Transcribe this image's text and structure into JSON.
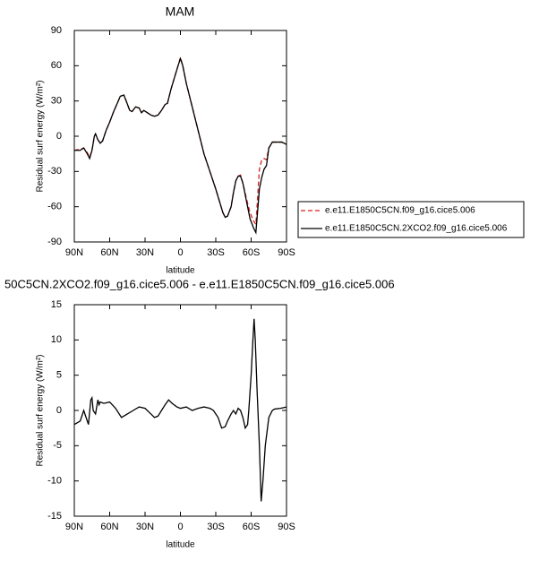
{
  "chart_data": [
    {
      "type": "line",
      "title": "MAM",
      "x_label": "latitude",
      "y_label": "Residual surf energy (W/m²)",
      "xlim": [
        90,
        -90
      ],
      "ylim": [
        -90,
        90
      ],
      "xticks": [
        {
          "value": 90,
          "label": "90N"
        },
        {
          "value": 60,
          "label": "60N"
        },
        {
          "value": 30,
          "label": "30N"
        },
        0,
        {
          "value": -30,
          "label": "30S"
        },
        {
          "value": -60,
          "label": "60S"
        },
        {
          "value": -90,
          "label": "90S"
        }
      ],
      "yticks": [
        -90,
        -60,
        -30,
        0,
        30,
        60,
        90
      ],
      "legend": "right",
      "x": [
        90,
        85,
        82,
        79,
        77,
        75,
        73,
        72,
        70,
        68,
        66,
        63,
        60,
        57,
        54,
        51,
        48,
        46,
        43,
        41,
        38,
        35,
        33,
        31,
        28,
        25,
        22,
        19,
        16,
        13,
        11,
        8,
        5,
        2,
        0,
        -2,
        -5,
        -10,
        -15,
        -20,
        -25,
        -30,
        -33,
        -36,
        -38,
        -40,
        -43,
        -45,
        -47,
        -49,
        -51,
        -53,
        -56,
        -59,
        -62,
        -64,
        -65,
        -67,
        -69,
        -71,
        -73,
        -75,
        -78,
        -82,
        -86,
        -90
      ],
      "series": [
        {
          "name": "e.e11.E1850C5CN.f09_g16.cice5.006",
          "color": "#d62020",
          "linestyle": "dashed",
          "values": [
            -12,
            -11,
            -10,
            -14,
            -18,
            -12,
            0,
            2,
            -3,
            -6,
            -4,
            5,
            12,
            20,
            27,
            34,
            35,
            30,
            22,
            21,
            25,
            24,
            20,
            22,
            20,
            18,
            17,
            18,
            22,
            27,
            28,
            40,
            50,
            60,
            67,
            60,
            45,
            25,
            5,
            -15,
            -30,
            -45,
            -55,
            -65,
            -69,
            -68,
            -60,
            -48,
            -38,
            -34,
            -33,
            -40,
            -53,
            -65,
            -72,
            -75,
            -60,
            -28,
            -20,
            -19,
            -20,
            -10,
            -5,
            -5,
            -5,
            -7
          ]
        },
        {
          "name": "e.e11.E1850C5CN.2XCO2.f09_g16.cice5.006",
          "color": "#000000",
          "linestyle": "solid",
          "values": [
            -12,
            -12,
            -10,
            -15,
            -19,
            -12,
            0,
            2,
            -3,
            -6,
            -4,
            5,
            12,
            20,
            27,
            34,
            35,
            30,
            22,
            21,
            25,
            24,
            20,
            22,
            20,
            18,
            17,
            18,
            22,
            27,
            28,
            40,
            50,
            60,
            66,
            60,
            45,
            25,
            5,
            -15,
            -30,
            -45,
            -55,
            -65,
            -69,
            -68,
            -60,
            -48,
            -38,
            -34,
            -34,
            -40,
            -55,
            -70,
            -78,
            -82,
            -70,
            -45,
            -35,
            -28,
            -25,
            -10,
            -5,
            -5,
            -5,
            -7
          ]
        }
      ]
    },
    {
      "type": "line",
      "title": "50C5CN.2XCO2.f09_g16.cice5.006 - e.e11.E1850C5CN.f09_g16.cice5.006",
      "x_label": "latitude",
      "y_label": "Residual surf energy (W/m²)",
      "xlim": [
        90,
        -90
      ],
      "ylim": [
        -15,
        15
      ],
      "xticks": [
        {
          "value": 90,
          "label": "90N"
        },
        {
          "value": 60,
          "label": "60N"
        },
        {
          "value": 30,
          "label": "30N"
        },
        0,
        {
          "value": -30,
          "label": "30S"
        },
        {
          "value": -60,
          "label": "60S"
        },
        {
          "value": -90,
          "label": "90S"
        }
      ],
      "yticks": [
        -15,
        -10,
        -5,
        0,
        5,
        10,
        15
      ],
      "x": [
        90,
        85,
        82,
        80,
        78,
        76,
        75,
        74,
        72,
        70,
        69,
        68,
        65,
        60,
        55,
        50,
        45,
        40,
        35,
        30,
        25,
        22,
        19,
        16,
        13,
        10,
        7,
        3,
        0,
        -5,
        -10,
        -15,
        -20,
        -25,
        -28,
        -32,
        -35,
        -38,
        -40,
        -43,
        -45,
        -47,
        -49,
        -51,
        -53,
        -55,
        -57,
        -58,
        -60,
        -61.5,
        -62.5,
        -63.5,
        -65,
        -67,
        -68.5,
        -70,
        -72,
        -75,
        -78,
        -80,
        -85,
        -90
      ],
      "series": [
        {
          "color": "#000000",
          "values": [
            -2,
            -1.5,
            0,
            -1,
            -2,
            1.5,
            1.8,
            0,
            -0.5,
            1.5,
            0.8,
            1.2,
            1,
            1.2,
            0.3,
            -1,
            -0.5,
            0,
            0.5,
            0.3,
            -0.5,
            -1,
            -0.8,
            0,
            0.8,
            1.5,
            1,
            0.5,
            0.3,
            0.5,
            0,
            0.3,
            0.5,
            0.3,
            0,
            -1,
            -2.5,
            -2.3,
            -1.5,
            -0.5,
            0,
            -0.5,
            0.3,
            0,
            -1,
            -2.5,
            -2,
            0,
            5,
            10,
            13,
            10,
            3,
            -5,
            -12.9,
            -10,
            -5,
            -1,
            0,
            0.2,
            0.3,
            0.5
          ]
        }
      ]
    }
  ]
}
